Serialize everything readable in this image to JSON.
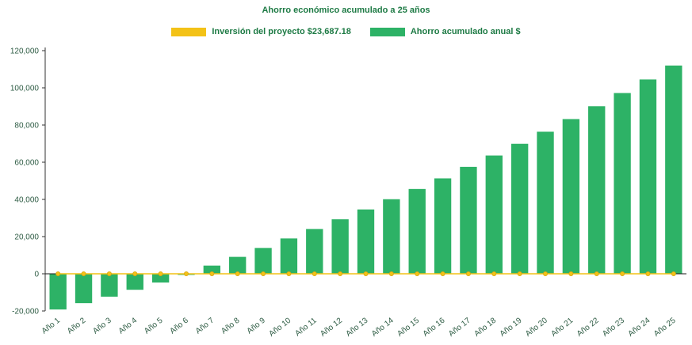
{
  "chart_data": {
    "type": "bar",
    "title": "Ahorro económico acumulado a 25 años",
    "categories": [
      "Año 1",
      "Año 2",
      "Año 3",
      "Año 4",
      "Año 5",
      "Año 6",
      "Año 7",
      "Año 8",
      "Año 9",
      "Año 10",
      "Año 11",
      "Año 12",
      "Año 13",
      "Año 14",
      "Año 15",
      "Año 16",
      "Año 17",
      "Año 18",
      "Año 19",
      "Año 20",
      "Año 21",
      "Año 22",
      "Año 23",
      "Año 24",
      "Año 25"
    ],
    "series": [
      {
        "name": "Inversión del proyecto $23,687.18",
        "type": "line",
        "color": "#f3c217",
        "values": [
          0,
          0,
          0,
          0,
          0,
          0,
          0,
          0,
          0,
          0,
          0,
          0,
          0,
          0,
          0,
          0,
          0,
          0,
          0,
          0,
          0,
          0,
          0,
          0,
          0
        ]
      },
      {
        "name": "Ahorro acumulado anual $",
        "type": "bar",
        "color": "#2db266",
        "values": [
          -19200,
          -15800,
          -12300,
          -8600,
          -4700,
          -600,
          4400,
          9100,
          13900,
          19000,
          24100,
          29300,
          34600,
          40100,
          45600,
          51300,
          57500,
          63600,
          69900,
          76400,
          83200,
          90100,
          97200,
          104500,
          112000
        ]
      }
    ],
    "ylim": [
      -20000,
      120000
    ],
    "ytick_step": 20000,
    "yticks": [
      "-20,000",
      "0",
      "20,000",
      "40,000",
      "60,000",
      "80,000",
      "100,000",
      "120,000"
    ],
    "xlabel": "",
    "ylabel": "",
    "grid": false,
    "legend_position": "top"
  }
}
